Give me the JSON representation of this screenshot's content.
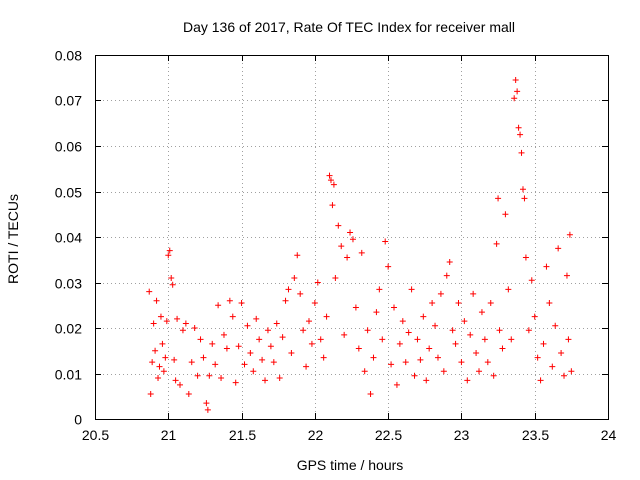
{
  "chart_data": {
    "type": "scatter",
    "title": "Day 136 of 2017, Rate Of TEC Index for receiver mall",
    "xlabel": "GPS time / hours",
    "ylabel": "ROTI / TECUs",
    "xlim": [
      20.5,
      24
    ],
    "ylim": [
      0,
      0.08
    ],
    "xticks": [
      20.5,
      21,
      21.5,
      22,
      22.5,
      23,
      23.5,
      24
    ],
    "xtick_labels": [
      "20.5",
      "21",
      "21.5",
      "22",
      "22.5",
      "23",
      "23.5",
      "24"
    ],
    "yticks": [
      0,
      0.01,
      0.02,
      0.03,
      0.04,
      0.05,
      0.06,
      0.07,
      0.08
    ],
    "ytick_labels": [
      "0",
      "0.01",
      "0.02",
      "0.03",
      "0.04",
      "0.05",
      "0.06",
      "0.07",
      "0.08"
    ],
    "grid": true,
    "marker": "+",
    "color": "#ff0000",
    "series": [
      {
        "name": "ROTI",
        "points": [
          [
            20.87,
            0.028
          ],
          [
            20.88,
            0.0055
          ],
          [
            20.89,
            0.0125
          ],
          [
            20.9,
            0.021
          ],
          [
            20.91,
            0.015
          ],
          [
            20.92,
            0.026
          ],
          [
            20.93,
            0.009
          ],
          [
            20.94,
            0.0115
          ],
          [
            20.95,
            0.0225
          ],
          [
            20.96,
            0.0165
          ],
          [
            20.97,
            0.0105
          ],
          [
            20.98,
            0.0135
          ],
          [
            20.99,
            0.0215
          ],
          [
            21.0,
            0.036
          ],
          [
            21.01,
            0.037
          ],
          [
            21.02,
            0.031
          ],
          [
            21.03,
            0.0295
          ],
          [
            21.04,
            0.013
          ],
          [
            21.05,
            0.0085
          ],
          [
            21.06,
            0.022
          ],
          [
            21.08,
            0.0075
          ],
          [
            21.1,
            0.0195
          ],
          [
            21.12,
            0.021
          ],
          [
            21.14,
            0.0055
          ],
          [
            21.16,
            0.0125
          ],
          [
            21.18,
            0.02
          ],
          [
            21.2,
            0.0095
          ],
          [
            21.22,
            0.0175
          ],
          [
            21.24,
            0.0135
          ],
          [
            21.26,
            0.0035
          ],
          [
            21.27,
            0.002
          ],
          [
            21.28,
            0.0095
          ],
          [
            21.3,
            0.0165
          ],
          [
            21.32,
            0.012
          ],
          [
            21.34,
            0.025
          ],
          [
            21.36,
            0.009
          ],
          [
            21.38,
            0.0185
          ],
          [
            21.4,
            0.0155
          ],
          [
            21.42,
            0.026
          ],
          [
            21.44,
            0.0225
          ],
          [
            21.46,
            0.008
          ],
          [
            21.48,
            0.016
          ],
          [
            21.5,
            0.0255
          ],
          [
            21.52,
            0.012
          ],
          [
            21.54,
            0.0205
          ],
          [
            21.56,
            0.0145
          ],
          [
            21.58,
            0.0105
          ],
          [
            21.6,
            0.022
          ],
          [
            21.62,
            0.0175
          ],
          [
            21.64,
            0.013
          ],
          [
            21.66,
            0.0085
          ],
          [
            21.68,
            0.0195
          ],
          [
            21.7,
            0.016
          ],
          [
            21.72,
            0.0125
          ],
          [
            21.74,
            0.021
          ],
          [
            21.76,
            0.009
          ],
          [
            21.78,
            0.018
          ],
          [
            21.8,
            0.026
          ],
          [
            21.82,
            0.0285
          ],
          [
            21.84,
            0.0145
          ],
          [
            21.86,
            0.031
          ],
          [
            21.88,
            0.036
          ],
          [
            21.9,
            0.0275
          ],
          [
            21.92,
            0.0195
          ],
          [
            21.94,
            0.0115
          ],
          [
            21.96,
            0.0215
          ],
          [
            21.98,
            0.0165
          ],
          [
            22.0,
            0.0255
          ],
          [
            22.02,
            0.03
          ],
          [
            22.04,
            0.0175
          ],
          [
            22.06,
            0.0135
          ],
          [
            22.08,
            0.0225
          ],
          [
            22.1,
            0.0535
          ],
          [
            22.11,
            0.0525
          ],
          [
            22.12,
            0.047
          ],
          [
            22.13,
            0.0515
          ],
          [
            22.14,
            0.031
          ],
          [
            22.16,
            0.0425
          ],
          [
            22.18,
            0.038
          ],
          [
            22.2,
            0.0185
          ],
          [
            22.22,
            0.0355
          ],
          [
            22.24,
            0.041
          ],
          [
            22.26,
            0.0395
          ],
          [
            22.28,
            0.0245
          ],
          [
            22.3,
            0.0155
          ],
          [
            22.32,
            0.0365
          ],
          [
            22.34,
            0.0105
          ],
          [
            22.36,
            0.0195
          ],
          [
            22.38,
            0.0055
          ],
          [
            22.4,
            0.0135
          ],
          [
            22.42,
            0.0235
          ],
          [
            22.44,
            0.0285
          ],
          [
            22.46,
            0.0175
          ],
          [
            22.48,
            0.039
          ],
          [
            22.5,
            0.0335
          ],
          [
            22.52,
            0.012
          ],
          [
            22.54,
            0.0245
          ],
          [
            22.56,
            0.0075
          ],
          [
            22.58,
            0.0165
          ],
          [
            22.6,
            0.0215
          ],
          [
            22.62,
            0.0125
          ],
          [
            22.64,
            0.019
          ],
          [
            22.66,
            0.0285
          ],
          [
            22.68,
            0.0095
          ],
          [
            22.7,
            0.0175
          ],
          [
            22.72,
            0.013
          ],
          [
            22.74,
            0.0225
          ],
          [
            22.76,
            0.0085
          ],
          [
            22.78,
            0.0155
          ],
          [
            22.8,
            0.0255
          ],
          [
            22.82,
            0.0205
          ],
          [
            22.84,
            0.0135
          ],
          [
            22.86,
            0.0275
          ],
          [
            22.88,
            0.0105
          ],
          [
            22.9,
            0.0315
          ],
          [
            22.92,
            0.0345
          ],
          [
            22.94,
            0.0195
          ],
          [
            22.96,
            0.0165
          ],
          [
            22.98,
            0.0255
          ],
          [
            23.0,
            0.0125
          ],
          [
            23.02,
            0.0215
          ],
          [
            23.04,
            0.0085
          ],
          [
            23.06,
            0.0185
          ],
          [
            23.08,
            0.0275
          ],
          [
            23.1,
            0.0145
          ],
          [
            23.12,
            0.0105
          ],
          [
            23.14,
            0.0235
          ],
          [
            23.16,
            0.0175
          ],
          [
            23.18,
            0.0125
          ],
          [
            23.2,
            0.0255
          ],
          [
            23.22,
            0.0095
          ],
          [
            23.24,
            0.0385
          ],
          [
            23.25,
            0.0485
          ],
          [
            23.26,
            0.0195
          ],
          [
            23.28,
            0.0155
          ],
          [
            23.3,
            0.045
          ],
          [
            23.32,
            0.0285
          ],
          [
            23.34,
            0.0175
          ],
          [
            23.36,
            0.0705
          ],
          [
            23.37,
            0.0745
          ],
          [
            23.38,
            0.072
          ],
          [
            23.39,
            0.064
          ],
          [
            23.4,
            0.0625
          ],
          [
            23.41,
            0.0585
          ],
          [
            23.42,
            0.0505
          ],
          [
            23.43,
            0.0485
          ],
          [
            23.44,
            0.0355
          ],
          [
            23.46,
            0.0195
          ],
          [
            23.48,
            0.0305
          ],
          [
            23.5,
            0.0225
          ],
          [
            23.52,
            0.0135
          ],
          [
            23.54,
            0.0085
          ],
          [
            23.56,
            0.0165
          ],
          [
            23.58,
            0.0335
          ],
          [
            23.6,
            0.0255
          ],
          [
            23.62,
            0.0115
          ],
          [
            23.64,
            0.0205
          ],
          [
            23.66,
            0.0375
          ],
          [
            23.68,
            0.0145
          ],
          [
            23.7,
            0.0095
          ],
          [
            23.72,
            0.0315
          ],
          [
            23.73,
            0.0175
          ],
          [
            23.74,
            0.0405
          ],
          [
            23.75,
            0.0105
          ]
        ]
      }
    ]
  }
}
